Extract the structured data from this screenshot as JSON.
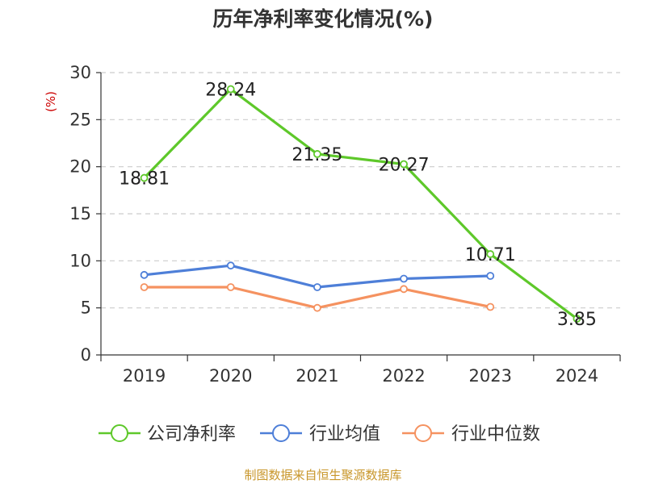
{
  "title": "历年净利率变化情况(%)",
  "source": "制图数据来自恒生聚源数据库",
  "colors": {
    "company": "#5ec82a",
    "industry_avg": "#4e7fd8",
    "industry_median": "#f59260",
    "grid": "#cccccc",
    "axis": "#333333"
  },
  "chart_data": {
    "type": "line",
    "categories": [
      "2019",
      "2020",
      "2021",
      "2022",
      "2023",
      "2024"
    ],
    "ylabel": "(%)",
    "ylim": [
      0,
      30
    ],
    "yticks": [
      0,
      5,
      10,
      15,
      20,
      25,
      30
    ],
    "grid": true,
    "legend_position": "bottom",
    "series": [
      {
        "key": "company",
        "name": "公司净利率",
        "values": [
          18.81,
          28.24,
          21.35,
          20.27,
          10.71,
          3.85
        ],
        "data_labels": [
          "18.81",
          "28.24",
          "21.35",
          "20.27",
          "10.71",
          "3.85"
        ]
      },
      {
        "key": "industry_avg",
        "name": "行业均值",
        "values": [
          8.5,
          9.5,
          7.2,
          8.1,
          8.4,
          null
        ]
      },
      {
        "key": "industry_median",
        "name": "行业中位数",
        "values": [
          7.2,
          7.2,
          5.0,
          7.0,
          5.1,
          null
        ]
      }
    ]
  }
}
